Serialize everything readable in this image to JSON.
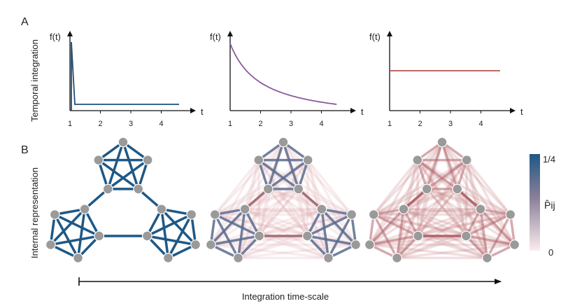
{
  "panel_a": {
    "label": "A",
    "ylabel": "Temporal integration",
    "plots": [
      {
        "f_label": "f(t)",
        "t_label": "t",
        "ticks": [
          "1",
          "2",
          "3",
          "4"
        ],
        "kind": "delta",
        "color": "#1f4e79"
      },
      {
        "f_label": "f(t)",
        "t_label": "t",
        "ticks": [
          "1",
          "2",
          "3",
          "4"
        ],
        "kind": "decay",
        "color": "#8a5a9e"
      },
      {
        "f_label": "f(t)",
        "t_label": "t",
        "ticks": [
          "1",
          "2",
          "3",
          "4"
        ],
        "kind": "flat",
        "color": "#b5524e"
      }
    ]
  },
  "panel_b": {
    "label": "B",
    "ylabel": "Internal representation",
    "colorbar": {
      "max_label": "1/4",
      "min_label": "0",
      "var_label": "P̂ij",
      "color_high": "#1e5886",
      "color_low": "#fbeced"
    },
    "networks": [
      {
        "name": "short",
        "in_cluster_color": "#1e5886",
        "in_cluster_opacity": 1.0,
        "cross_color": "#c98a8d",
        "cross_opacity": 0.0,
        "bridge_color": "#1e5886"
      },
      {
        "name": "medium",
        "in_cluster_color": "#5a6b8e",
        "in_cluster_opacity": 0.85,
        "cross_color": "#d9a3a7",
        "cross_opacity": 0.35,
        "bridge_color": "#a5707a"
      },
      {
        "name": "long",
        "in_cluster_color": "#b2666d",
        "in_cluster_opacity": 0.55,
        "cross_color": "#c58085",
        "cross_opacity": 0.45,
        "bridge_color": "#b2666d"
      }
    ]
  },
  "xaxis_label": "Integration time-scale",
  "node_color": "#9a9a9a"
}
